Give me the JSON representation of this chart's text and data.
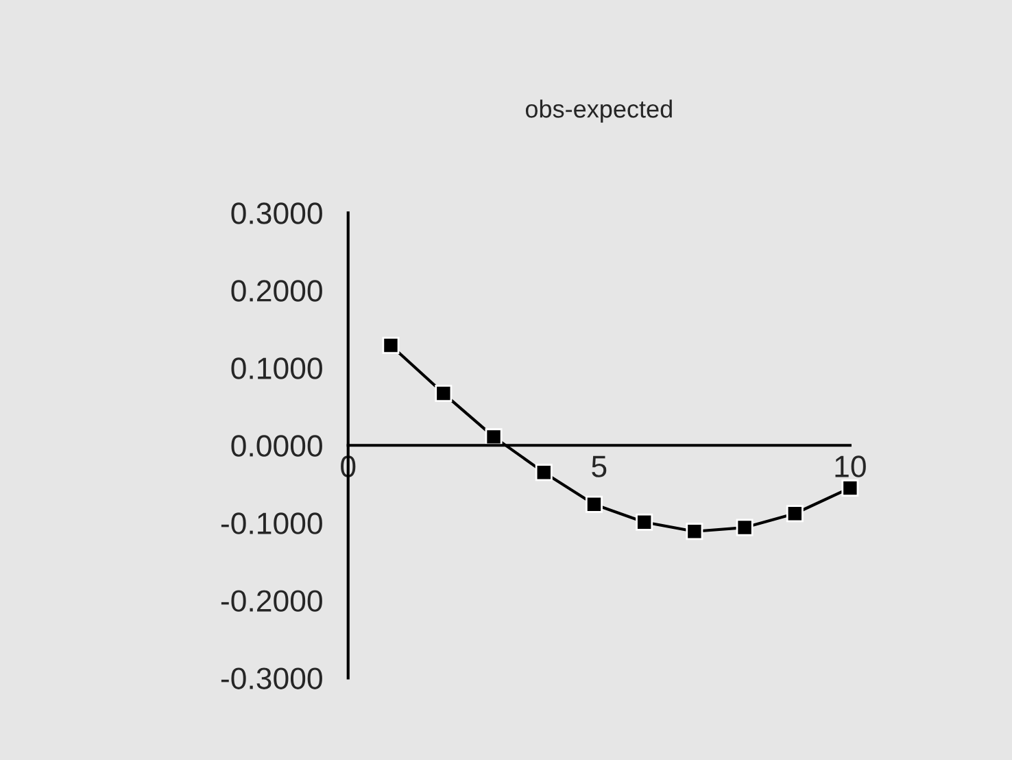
{
  "chart_data": {
    "type": "line",
    "title": "obs-expected",
    "x": [
      0.85,
      1.9,
      2.9,
      3.9,
      4.9,
      5.9,
      6.9,
      7.9,
      8.9,
      10
    ],
    "series": [
      {
        "color": "#000000",
        "values": [
          0.129,
          0.067,
          0.011,
          -0.035,
          -0.076,
          -0.099,
          -0.111,
          -0.106,
          -0.088,
          -0.055
        ]
      }
    ],
    "xlim": [
      0,
      10
    ],
    "xticks": [
      0,
      5,
      10
    ],
    "ylim": [
      -0.3,
      0.3
    ],
    "yticks": [
      {
        "value": -0.3,
        "label": "-0.3000"
      },
      {
        "value": -0.2,
        "label": "-0.2000"
      },
      {
        "value": -0.1,
        "label": "-0.1000"
      },
      {
        "value": 0,
        "label": "0.0000"
      },
      {
        "value": 0.1,
        "label": "0.1000"
      },
      {
        "value": 0.2,
        "label": "0.2000"
      },
      {
        "value": 0.3,
        "label": "0.3000"
      }
    ],
    "marker": "square",
    "line_style": "solid",
    "grid": false,
    "legend": false
  }
}
